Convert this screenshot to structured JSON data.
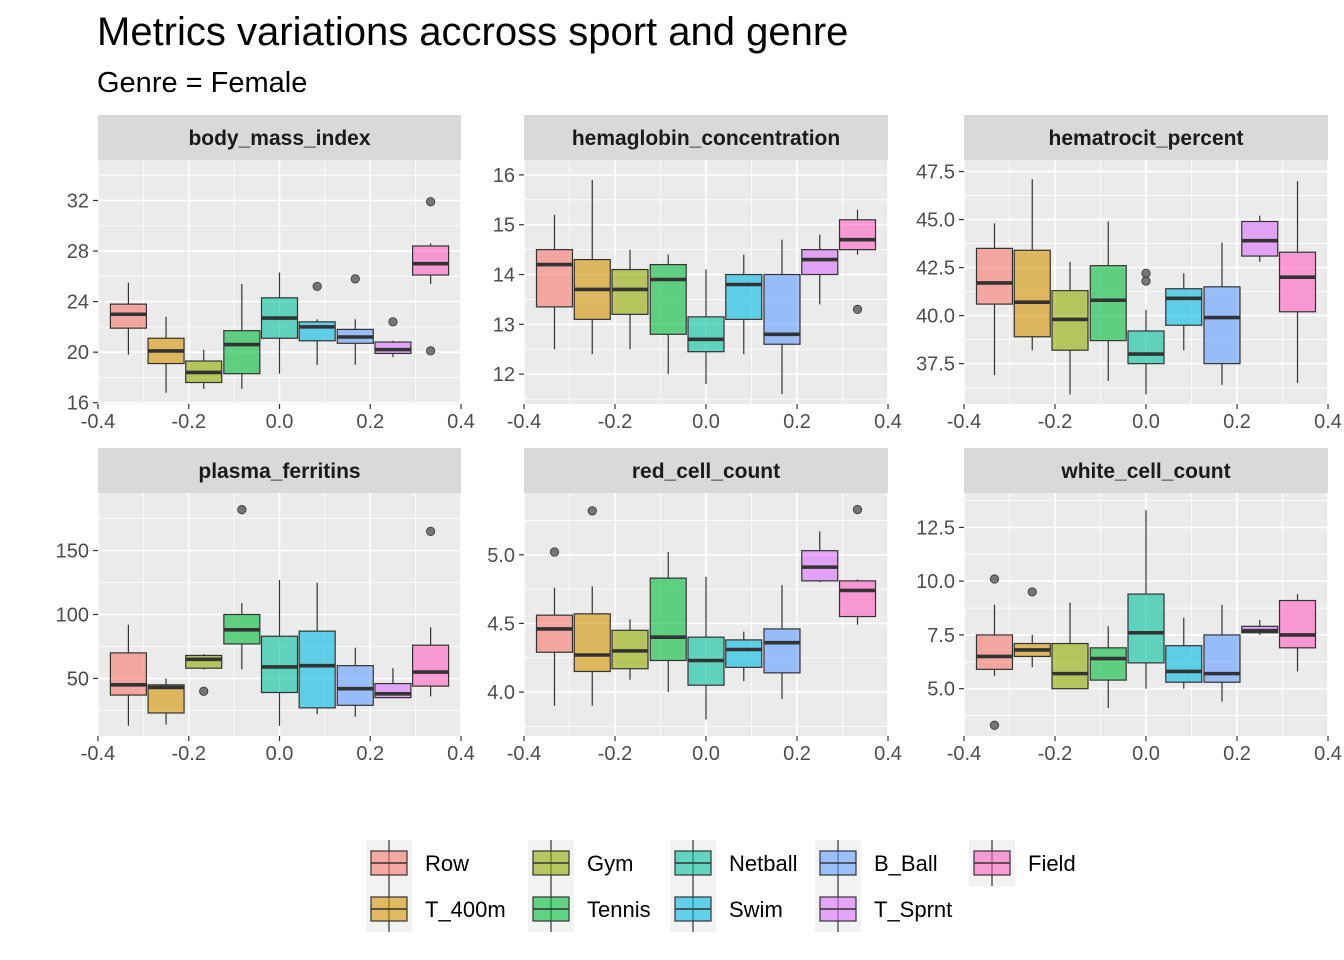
{
  "title": "Metrics variations accross sport and genre",
  "subtitle": "Genre = Female",
  "chart_data": {
    "type": "boxplot",
    "facet_layout": "3 columns x 2 rows",
    "grid": true,
    "legend_position": "bottom",
    "sports": [
      "Row",
      "T_400m",
      "Gym",
      "Tennis",
      "Netball",
      "Swim",
      "B_Ball",
      "T_Sprnt",
      "Field"
    ],
    "colors": {
      "Row": "#F8766D",
      "T_400m": "#D39200",
      "Gym": "#93AA00",
      "Tennis": "#00BA38",
      "Netball": "#00C19F",
      "Swim": "#00B9E3",
      "B_Ball": "#619CFF",
      "T_Sprnt": "#DB72FB",
      "Field": "#FF61C3"
    },
    "box_alpha": 0.6,
    "x_positions": [
      -0.333,
      -0.25,
      -0.167,
      -0.083,
      0.0,
      0.083,
      0.167,
      0.25,
      0.333
    ],
    "x_ticks": [
      "-0.4",
      "-0.2",
      "0.0",
      "0.2",
      "0.4"
    ],
    "x_tick_values": [
      -0.4,
      -0.2,
      0.0,
      0.2,
      0.4
    ],
    "xlim": [
      -0.4,
      0.4
    ],
    "panels": [
      {
        "name": "body_mass_index",
        "ylim": [
          15.9,
          35.2
        ],
        "y_ticks": [
          16,
          20,
          24,
          28,
          32
        ],
        "y_tick_labels": [
          "16",
          "20",
          "24",
          "28",
          "32"
        ],
        "boxes": [
          {
            "sport": "Row",
            "whisker_low": 19.8,
            "q1": 21.9,
            "median": 23.0,
            "q3": 23.8,
            "whisker_high": 25.5,
            "outliers": []
          },
          {
            "sport": "T_400m",
            "whisker_low": 16.8,
            "q1": 19.1,
            "median": 20.1,
            "q3": 21.1,
            "whisker_high": 22.8,
            "outliers": []
          },
          {
            "sport": "Gym",
            "whisker_low": 17.1,
            "q1": 17.6,
            "median": 18.4,
            "q3": 19.3,
            "whisker_high": 20.2,
            "outliers": []
          },
          {
            "sport": "Tennis",
            "whisker_low": 17.1,
            "q1": 18.3,
            "median": 20.6,
            "q3": 21.7,
            "whisker_high": 25.4,
            "outliers": []
          },
          {
            "sport": "Netball",
            "whisker_low": 18.3,
            "q1": 21.1,
            "median": 22.7,
            "q3": 24.3,
            "whisker_high": 26.3,
            "outliers": []
          },
          {
            "sport": "Swim",
            "whisker_low": 19.0,
            "q1": 20.9,
            "median": 22.0,
            "q3": 22.4,
            "whisker_high": 22.6,
            "outliers": [
              25.2
            ]
          },
          {
            "sport": "B_Ball",
            "whisker_low": 19.0,
            "q1": 20.7,
            "median": 21.2,
            "q3": 21.8,
            "whisker_high": 22.6,
            "outliers": [
              25.8
            ]
          },
          {
            "sport": "T_Sprnt",
            "whisker_low": 19.6,
            "q1": 19.9,
            "median": 20.2,
            "q3": 20.8,
            "whisker_high": 20.9,
            "outliers": [
              22.4
            ]
          },
          {
            "sport": "Field",
            "whisker_low": 25.4,
            "q1": 26.1,
            "median": 27.0,
            "q3": 28.4,
            "whisker_high": 28.6,
            "outliers": [
              31.9,
              20.1
            ]
          }
        ]
      },
      {
        "name": "hemaglobin_concentration",
        "ylim": [
          11.4,
          16.3
        ],
        "y_ticks": [
          12,
          13,
          14,
          15,
          16
        ],
        "y_tick_labels": [
          "12",
          "13",
          "14",
          "15",
          "16"
        ],
        "boxes": [
          {
            "sport": "Row",
            "whisker_low": 12.5,
            "q1": 13.35,
            "median": 14.2,
            "q3": 14.5,
            "whisker_high": 15.2,
            "outliers": []
          },
          {
            "sport": "T_400m",
            "whisker_low": 12.4,
            "q1": 13.1,
            "median": 13.7,
            "q3": 14.3,
            "whisker_high": 15.9,
            "outliers": []
          },
          {
            "sport": "Gym",
            "whisker_low": 12.5,
            "q1": 13.2,
            "median": 13.7,
            "q3": 14.1,
            "whisker_high": 14.5,
            "outliers": []
          },
          {
            "sport": "Tennis",
            "whisker_low": 12.0,
            "q1": 12.8,
            "median": 13.9,
            "q3": 14.2,
            "whisker_high": 14.4,
            "outliers": []
          },
          {
            "sport": "Netball",
            "whisker_low": 11.8,
            "q1": 12.45,
            "median": 12.7,
            "q3": 13.15,
            "whisker_high": 14.1,
            "outliers": []
          },
          {
            "sport": "Swim",
            "whisker_low": 12.4,
            "q1": 13.1,
            "median": 13.8,
            "q3": 14.0,
            "whisker_high": 14.4,
            "outliers": []
          },
          {
            "sport": "B_Ball",
            "whisker_low": 11.6,
            "q1": 12.6,
            "median": 12.8,
            "q3": 14.0,
            "whisker_high": 14.7,
            "outliers": []
          },
          {
            "sport": "T_Sprnt",
            "whisker_low": 13.4,
            "q1": 14.0,
            "median": 14.3,
            "q3": 14.5,
            "whisker_high": 14.8,
            "outliers": []
          },
          {
            "sport": "Field",
            "whisker_low": 14.4,
            "q1": 14.5,
            "median": 14.7,
            "q3": 15.1,
            "whisker_high": 15.3,
            "outliers": [
              13.3
            ]
          }
        ]
      },
      {
        "name": "hematrocit_percent",
        "ylim": [
          35.4,
          48.1
        ],
        "y_ticks": [
          37.5,
          40.0,
          42.5,
          45.0,
          47.5
        ],
        "y_tick_labels": [
          "37.5",
          "40.0",
          "42.5",
          "45.0",
          "47.5"
        ],
        "boxes": [
          {
            "sport": "Row",
            "whisker_low": 36.9,
            "q1": 40.6,
            "median": 41.7,
            "q3": 43.5,
            "whisker_high": 44.8,
            "outliers": []
          },
          {
            "sport": "T_400m",
            "whisker_low": 38.2,
            "q1": 38.9,
            "median": 40.7,
            "q3": 43.4,
            "whisker_high": 47.1,
            "outliers": []
          },
          {
            "sport": "Gym",
            "whisker_low": 35.9,
            "q1": 38.2,
            "median": 39.8,
            "q3": 41.3,
            "whisker_high": 42.8,
            "outliers": []
          },
          {
            "sport": "Tennis",
            "whisker_low": 36.6,
            "q1": 38.7,
            "median": 40.8,
            "q3": 42.6,
            "whisker_high": 44.9,
            "outliers": []
          },
          {
            "sport": "Netball",
            "whisker_low": 35.9,
            "q1": 37.5,
            "median": 38.0,
            "q3": 39.2,
            "whisker_high": 40.3,
            "outliers": [
              41.8,
              42.2
            ]
          },
          {
            "sport": "Swim",
            "whisker_low": 38.2,
            "q1": 39.5,
            "median": 40.9,
            "q3": 41.4,
            "whisker_high": 42.2,
            "outliers": []
          },
          {
            "sport": "B_Ball",
            "whisker_low": 36.4,
            "q1": 37.5,
            "median": 39.9,
            "q3": 41.5,
            "whisker_high": 43.8,
            "outliers": []
          },
          {
            "sport": "T_Sprnt",
            "whisker_low": 42.8,
            "q1": 43.1,
            "median": 43.9,
            "q3": 44.9,
            "whisker_high": 45.2,
            "outliers": []
          },
          {
            "sport": "Field",
            "whisker_low": 36.5,
            "q1": 40.2,
            "median": 42.0,
            "q3": 43.3,
            "whisker_high": 47.0,
            "outliers": []
          }
        ]
      },
      {
        "name": "plasma_ferritins",
        "ylim": [
          5,
          195
        ],
        "y_ticks": [
          50,
          100,
          150
        ],
        "y_tick_labels": [
          "50",
          "100",
          "150"
        ],
        "boxes": [
          {
            "sport": "Row",
            "whisker_low": 13,
            "q1": 37,
            "median": 45,
            "q3": 70,
            "whisker_high": 92,
            "outliers": []
          },
          {
            "sport": "T_400m",
            "whisker_low": 14,
            "q1": 23,
            "median": 43,
            "q3": 45,
            "whisker_high": 50,
            "outliers": []
          },
          {
            "sport": "Gym",
            "whisker_low": 57,
            "q1": 58,
            "median": 65,
            "q3": 68,
            "whisker_high": 69,
            "outliers": [
              40
            ]
          },
          {
            "sport": "Tennis",
            "whisker_low": 57,
            "q1": 77,
            "median": 88,
            "q3": 100,
            "whisker_high": 109,
            "outliers": [
              182
            ]
          },
          {
            "sport": "Netball",
            "whisker_low": 13,
            "q1": 39,
            "median": 59,
            "q3": 83,
            "whisker_high": 127,
            "outliers": []
          },
          {
            "sport": "Swim",
            "whisker_low": 22,
            "q1": 27,
            "median": 60,
            "q3": 87,
            "whisker_high": 125,
            "outliers": []
          },
          {
            "sport": "B_Ball",
            "whisker_low": 20,
            "q1": 29,
            "median": 42,
            "q3": 60,
            "whisker_high": 74,
            "outliers": []
          },
          {
            "sport": "T_Sprnt",
            "whisker_low": 35,
            "q1": 35,
            "median": 38,
            "q3": 46,
            "whisker_high": 58,
            "outliers": []
          },
          {
            "sport": "Field",
            "whisker_low": 36,
            "q1": 44,
            "median": 55,
            "q3": 76,
            "whisker_high": 90,
            "outliers": [
              165
            ]
          }
        ]
      },
      {
        "name": "red_cell_count",
        "ylim": [
          3.68,
          5.45
        ],
        "y_ticks": [
          4.0,
          4.5,
          5.0
        ],
        "y_tick_labels": [
          "4.0",
          "4.5",
          "5.0"
        ],
        "boxes": [
          {
            "sport": "Row",
            "whisker_low": 3.9,
            "q1": 4.29,
            "median": 4.46,
            "q3": 4.56,
            "whisker_high": 4.76,
            "outliers": [
              5.02
            ]
          },
          {
            "sport": "T_400m",
            "whisker_low": 3.9,
            "q1": 4.15,
            "median": 4.27,
            "q3": 4.57,
            "whisker_high": 4.77,
            "outliers": [
              5.32
            ]
          },
          {
            "sport": "Gym",
            "whisker_low": 4.09,
            "q1": 4.17,
            "median": 4.3,
            "q3": 4.45,
            "whisker_high": 4.53,
            "outliers": []
          },
          {
            "sport": "Tennis",
            "whisker_low": 4.0,
            "q1": 4.23,
            "median": 4.4,
            "q3": 4.83,
            "whisker_high": 5.02,
            "outliers": []
          },
          {
            "sport": "Netball",
            "whisker_low": 3.8,
            "q1": 4.05,
            "median": 4.23,
            "q3": 4.4,
            "whisker_high": 4.84,
            "outliers": []
          },
          {
            "sport": "Swim",
            "whisker_low": 4.08,
            "q1": 4.18,
            "median": 4.31,
            "q3": 4.38,
            "whisker_high": 4.44,
            "outliers": []
          },
          {
            "sport": "B_Ball",
            "whisker_low": 3.95,
            "q1": 4.14,
            "median": 4.36,
            "q3": 4.46,
            "whisker_high": 4.78,
            "outliers": []
          },
          {
            "sport": "T_Sprnt",
            "whisker_low": 4.8,
            "q1": 4.81,
            "median": 4.91,
            "q3": 5.03,
            "whisker_high": 5.17,
            "outliers": []
          },
          {
            "sport": "Field",
            "whisker_low": 4.49,
            "q1": 4.55,
            "median": 4.74,
            "q3": 4.81,
            "whisker_high": 4.82,
            "outliers": [
              5.33
            ]
          }
        ]
      },
      {
        "name": "white_cell_count",
        "ylim": [
          2.8,
          14.1
        ],
        "y_ticks": [
          5.0,
          7.5,
          10.0,
          12.5
        ],
        "y_tick_labels": [
          "5.0",
          "7.5",
          "10.0",
          "12.5"
        ],
        "boxes": [
          {
            "sport": "Row",
            "whisker_low": 5.6,
            "q1": 5.9,
            "median": 6.5,
            "q3": 7.5,
            "whisker_high": 8.9,
            "outliers": [
              10.1,
              3.3
            ]
          },
          {
            "sport": "T_400m",
            "whisker_low": 6.0,
            "q1": 6.5,
            "median": 6.8,
            "q3": 7.1,
            "whisker_high": 7.5,
            "outliers": [
              9.5
            ]
          },
          {
            "sport": "Gym",
            "whisker_low": 5.0,
            "q1": 5.0,
            "median": 5.7,
            "q3": 7.1,
            "whisker_high": 9.0,
            "outliers": []
          },
          {
            "sport": "Tennis",
            "whisker_low": 4.1,
            "q1": 5.4,
            "median": 6.4,
            "q3": 6.9,
            "whisker_high": 7.9,
            "outliers": []
          },
          {
            "sport": "Netball",
            "whisker_low": 5.0,
            "q1": 6.2,
            "median": 7.6,
            "q3": 9.4,
            "whisker_high": 13.3,
            "outliers": []
          },
          {
            "sport": "Swim",
            "whisker_low": 5.0,
            "q1": 5.3,
            "median": 5.8,
            "q3": 7.0,
            "whisker_high": 8.3,
            "outliers": []
          },
          {
            "sport": "B_Ball",
            "whisker_low": 4.4,
            "q1": 5.3,
            "median": 5.7,
            "q3": 7.5,
            "whisker_high": 8.9,
            "outliers": []
          },
          {
            "sport": "T_Sprnt",
            "whisker_low": 7.5,
            "q1": 7.6,
            "median": 7.7,
            "q3": 7.9,
            "whisker_high": 8.2,
            "outliers": []
          },
          {
            "sport": "Field",
            "whisker_low": 5.8,
            "q1": 6.9,
            "median": 7.5,
            "q3": 9.1,
            "whisker_high": 9.4,
            "outliers": []
          }
        ]
      }
    ]
  },
  "legend": {
    "items": [
      "Row",
      "T_400m",
      "Gym",
      "Tennis",
      "Netball",
      "Swim",
      "B_Ball",
      "T_Sprnt",
      "Field"
    ]
  }
}
